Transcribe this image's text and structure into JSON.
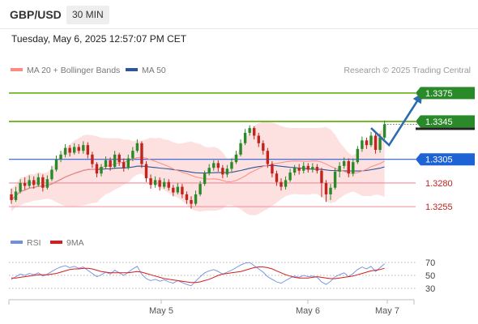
{
  "header": {
    "pair": "GBP/USD",
    "timeframe": "30 MIN",
    "datetime": "Tuesday, May 6, 2025 12:57:07 PM CET"
  },
  "legend": {
    "ma20": "MA 20 + Bollinger Bands",
    "ma50": "MA 50",
    "credit": "Research © 2025 Trading Central"
  },
  "rsi_legend": {
    "rsi": "RSI",
    "ma": "9MA"
  },
  "colors": {
    "up": "#2a8a2a",
    "down": "#c0241c",
    "ma20": "#ff8a80",
    "ma50": "#2f5597",
    "resistance": "#5aa800",
    "pivot": "#2962d9",
    "support": "#f28b9a",
    "band": "#fde0e0",
    "arrow": "#2b6cb0",
    "rsi": "#6f8fe0",
    "rsi_ma": "#d81b1b"
  },
  "chart_data": [
    {
      "type": "candlestick",
      "title": "GBP/USD",
      "timeframe": "30 MIN",
      "x_tick_labels": [
        "May 5",
        "May 6",
        "May 7"
      ],
      "ylim": [
        1.3238,
        1.3392
      ],
      "levels": [
        {
          "value": 1.3375,
          "label": "1.3375",
          "kind": "resistance"
        },
        {
          "value": 1.3345,
          "label": "1.3345",
          "kind": "resistance"
        },
        {
          "value": 1.3305,
          "label": "1.3305",
          "kind": "pivot"
        },
        {
          "value": 1.328,
          "label": "1.3280",
          "kind": "support"
        },
        {
          "value": 1.3255,
          "label": "1.3255",
          "kind": "support"
        }
      ],
      "last_price": 1.3342,
      "forecast_path": [
        {
          "bar": 80,
          "value": 1.3338
        },
        {
          "bar": 84,
          "value": 1.332
        },
        {
          "bar": 91,
          "value": 1.3372
        }
      ],
      "candles": [
        [
          1.3268,
          1.3262,
          1.3274,
          1.3258
        ],
        [
          1.3262,
          1.3271,
          1.3276,
          1.326
        ],
        [
          1.3271,
          1.328,
          1.3284,
          1.3269
        ],
        [
          1.328,
          1.3277,
          1.3286,
          1.3273
        ],
        [
          1.3277,
          1.3283,
          1.3288,
          1.3275
        ],
        [
          1.3283,
          1.3278,
          1.3287,
          1.3274
        ],
        [
          1.3278,
          1.3286,
          1.329,
          1.3276
        ],
        [
          1.3286,
          1.3275,
          1.3289,
          1.3271
        ],
        [
          1.3275,
          1.3284,
          1.3288,
          1.3273
        ],
        [
          1.3284,
          1.3294,
          1.3298,
          1.3282
        ],
        [
          1.3294,
          1.3305,
          1.3309,
          1.3292
        ],
        [
          1.3305,
          1.331,
          1.3314,
          1.3302
        ],
        [
          1.331,
          1.3317,
          1.3321,
          1.3307
        ],
        [
          1.3317,
          1.3312,
          1.332,
          1.3308
        ],
        [
          1.3312,
          1.3318,
          1.3322,
          1.331
        ],
        [
          1.3318,
          1.3314,
          1.3321,
          1.3311
        ],
        [
          1.3314,
          1.332,
          1.3324,
          1.3311
        ],
        [
          1.332,
          1.331,
          1.3323,
          1.3306
        ],
        [
          1.331,
          1.33,
          1.3313,
          1.3296
        ],
        [
          1.33,
          1.329,
          1.3302,
          1.3286
        ],
        [
          1.329,
          1.3297,
          1.33,
          1.3287
        ],
        [
          1.3297,
          1.3304,
          1.3308,
          1.3295
        ],
        [
          1.3304,
          1.3297,
          1.3307,
          1.3293
        ],
        [
          1.3297,
          1.331,
          1.3314,
          1.3295
        ],
        [
          1.331,
          1.3302,
          1.3312,
          1.3298
        ],
        [
          1.3302,
          1.3296,
          1.3306,
          1.3292
        ],
        [
          1.3296,
          1.3306,
          1.331,
          1.3294
        ],
        [
          1.3306,
          1.3314,
          1.3318,
          1.3303
        ],
        [
          1.3314,
          1.3322,
          1.3326,
          1.3312
        ],
        [
          1.3322,
          1.33,
          1.3324,
          1.3296
        ],
        [
          1.33,
          1.3285,
          1.3303,
          1.3281
        ],
        [
          1.3285,
          1.3278,
          1.3289,
          1.3274
        ],
        [
          1.3278,
          1.3283,
          1.3287,
          1.3275
        ],
        [
          1.3283,
          1.3276,
          1.3286,
          1.3272
        ],
        [
          1.3276,
          1.3281,
          1.3285,
          1.3274
        ],
        [
          1.3281,
          1.3275,
          1.3284,
          1.3272
        ],
        [
          1.3275,
          1.327,
          1.3278,
          1.3266
        ],
        [
          1.327,
          1.3276,
          1.328,
          1.3268
        ],
        [
          1.3276,
          1.3268,
          1.3279,
          1.3264
        ],
        [
          1.3268,
          1.3262,
          1.3271,
          1.3258
        ],
        [
          1.3262,
          1.3258,
          1.3266,
          1.3253
        ],
        [
          1.3258,
          1.3268,
          1.3272,
          1.3256
        ],
        [
          1.3268,
          1.3279,
          1.3282,
          1.3266
        ],
        [
          1.3279,
          1.329,
          1.3293,
          1.3277
        ],
        [
          1.329,
          1.3296,
          1.33,
          1.3288
        ],
        [
          1.3296,
          1.3301,
          1.3304,
          1.3293
        ],
        [
          1.3301,
          1.3296,
          1.3304,
          1.3292
        ],
        [
          1.3296,
          1.3289,
          1.3299,
          1.3285
        ],
        [
          1.3289,
          1.3295,
          1.3299,
          1.3286
        ],
        [
          1.3295,
          1.3302,
          1.3306,
          1.3292
        ],
        [
          1.3302,
          1.331,
          1.3314,
          1.33
        ],
        [
          1.331,
          1.3322,
          1.3326,
          1.3308
        ],
        [
          1.3322,
          1.3333,
          1.3337,
          1.332
        ],
        [
          1.3333,
          1.3338,
          1.3341,
          1.333
        ],
        [
          1.3338,
          1.333,
          1.334,
          1.3326
        ],
        [
          1.333,
          1.3322,
          1.3333,
          1.3318
        ],
        [
          1.3322,
          1.3314,
          1.3325,
          1.331
        ],
        [
          1.3314,
          1.33,
          1.3317,
          1.3296
        ],
        [
          1.33,
          1.329,
          1.3303,
          1.3286
        ],
        [
          1.329,
          1.3281,
          1.3293,
          1.3277
        ],
        [
          1.3281,
          1.3276,
          1.3285,
          1.3272
        ],
        [
          1.3276,
          1.3283,
          1.3287,
          1.3273
        ],
        [
          1.3283,
          1.3291,
          1.3295,
          1.3281
        ],
        [
          1.3291,
          1.3296,
          1.3299,
          1.3288
        ],
        [
          1.3296,
          1.3293,
          1.33,
          1.3289
        ],
        [
          1.3293,
          1.3298,
          1.3302,
          1.329
        ],
        [
          1.3298,
          1.3294,
          1.3301,
          1.3291
        ],
        [
          1.3294,
          1.3297,
          1.3301,
          1.3291
        ],
        [
          1.3297,
          1.3293,
          1.33,
          1.329
        ],
        [
          1.3293,
          1.328,
          1.3296,
          1.3265
        ],
        [
          1.328,
          1.3268,
          1.3283,
          1.326
        ],
        [
          1.3268,
          1.3275,
          1.3279,
          1.3262
        ],
        [
          1.3275,
          1.3292,
          1.3296,
          1.3273
        ],
        [
          1.3292,
          1.3298,
          1.3302,
          1.3286
        ],
        [
          1.3298,
          1.3303,
          1.3307,
          1.3295
        ],
        [
          1.3303,
          1.329,
          1.3306,
          1.3286
        ],
        [
          1.329,
          1.3302,
          1.3306,
          1.3287
        ],
        [
          1.3302,
          1.3316,
          1.3319,
          1.33
        ],
        [
          1.3316,
          1.3325,
          1.3329,
          1.3313
        ],
        [
          1.3325,
          1.332,
          1.3328,
          1.3316
        ],
        [
          1.332,
          1.333,
          1.3334,
          1.3318
        ],
        [
          1.333,
          1.3315,
          1.3333,
          1.3311
        ],
        [
          1.3315,
          1.3328,
          1.3332,
          1.3312
        ],
        [
          1.3328,
          1.3342,
          1.3346,
          1.3326
        ]
      ],
      "rsi": {
        "ticks": [
          30,
          50,
          70
        ],
        "ylim": [
          20,
          80
        ],
        "rsi": [
          44,
          48,
          52,
          50,
          53,
          51,
          54,
          49,
          52,
          56,
          60,
          63,
          65,
          62,
          64,
          61,
          63,
          58,
          53,
          48,
          51,
          55,
          52,
          58,
          54,
          50,
          55,
          60,
          64,
          52,
          45,
          42,
          44,
          41,
          43,
          40,
          38,
          42,
          39,
          36,
          34,
          41,
          48,
          54,
          57,
          59,
          56,
          52,
          55,
          58,
          62,
          66,
          69,
          70,
          65,
          60,
          55,
          48,
          44,
          40,
          38,
          42,
          46,
          49,
          47,
          50,
          48,
          49,
          47,
          40,
          36,
          41,
          48,
          51,
          54,
          48,
          53,
          59,
          63,
          60,
          64,
          56,
          62,
          68
        ],
        "ma": [
          46,
          46,
          47,
          48,
          49,
          50,
          51,
          51,
          51,
          52,
          53,
          55,
          57,
          59,
          60,
          60,
          61,
          61,
          60,
          58,
          56,
          55,
          54,
          54,
          54,
          54,
          54,
          55,
          56,
          55,
          53,
          51,
          49,
          47,
          45,
          44,
          43,
          42,
          41,
          40,
          39,
          39,
          40,
          42,
          44,
          47,
          50,
          52,
          53,
          54,
          55,
          56,
          58,
          60,
          62,
          63,
          63,
          62,
          60,
          57,
          54,
          51,
          49,
          47,
          46,
          46,
          46,
          47,
          48,
          47,
          46,
          45,
          45,
          46,
          47,
          48,
          49,
          51,
          53,
          55,
          57,
          58,
          59,
          61
        ]
      }
    }
  ]
}
